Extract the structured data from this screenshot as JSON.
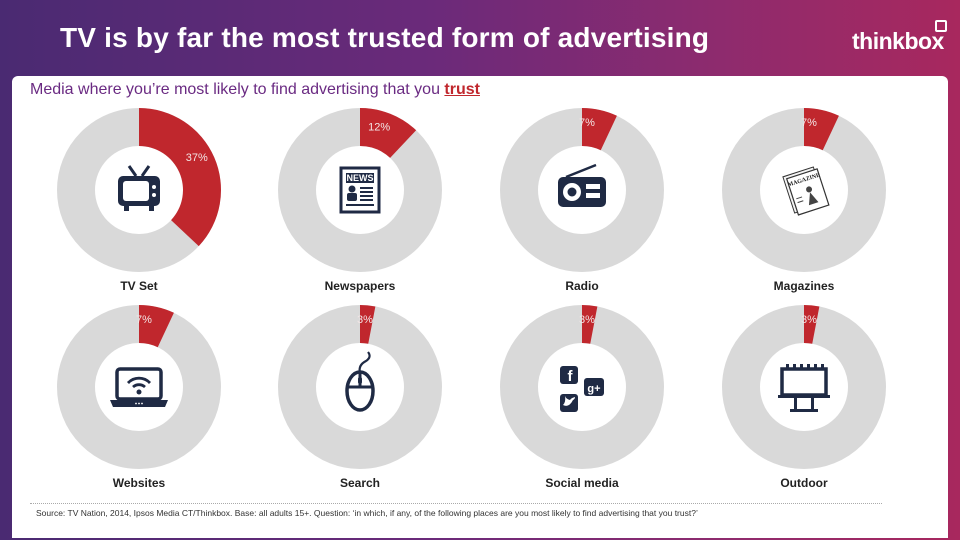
{
  "header": {
    "title": "TV is by far the most trusted form of advertising",
    "logo_text": "thinkbox"
  },
  "subtitle": {
    "prefix": "Media where you’re most likely to find advertising that you ",
    "highlight": "trust"
  },
  "colors": {
    "accent_red": "#c0272d",
    "ring_grey": "#d9d9d9",
    "icon_navy": "#1f2a44"
  },
  "chart_data": {
    "type": "pie",
    "style": "donut",
    "unit": "%",
    "items": [
      {
        "label": "TV Set",
        "value": 37,
        "value_label": "37%",
        "icon": "tv-icon"
      },
      {
        "label": "Newspapers",
        "value": 12,
        "value_label": "12%",
        "icon": "newspaper-icon"
      },
      {
        "label": "Radio",
        "value": 7,
        "value_label": "7%",
        "icon": "radio-icon"
      },
      {
        "label": "Magazines",
        "value": 7,
        "value_label": "7%",
        "icon": "magazine-icon"
      },
      {
        "label": "Websites",
        "value": 7,
        "value_label": "7%",
        "icon": "laptop-wifi-icon"
      },
      {
        "label": "Search",
        "value": 3,
        "value_label": "3%",
        "icon": "mouse-icon"
      },
      {
        "label": "Social media",
        "value": 3,
        "value_label": "3%",
        "icon": "social-media-icon"
      },
      {
        "label": "Outdoor",
        "value": 3,
        "value_label": "3%",
        "icon": "billboard-icon"
      }
    ]
  },
  "footer": {
    "source": "Source: TV Nation, 2014, Ipsos Media CT/Thinkbox.  Base: all adults 15+. Question: ‘in which, if any, of the following places are you most likely to find advertising that you trust?’"
  }
}
